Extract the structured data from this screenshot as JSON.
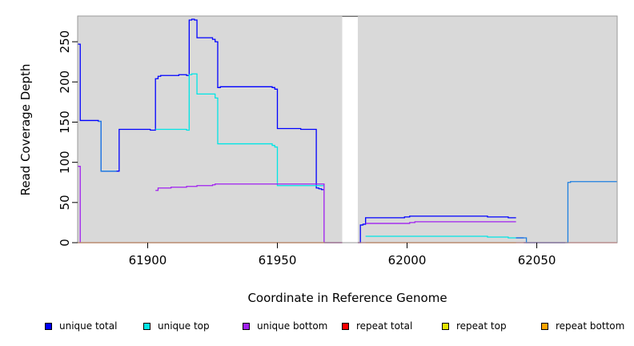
{
  "chart_data": {
    "type": "line",
    "xlabel": "Coordinate in Reference Genome",
    "ylabel": "Read Coverage Depth",
    "xlim": [
      61873,
      62081
    ],
    "ylim": [
      0,
      282
    ],
    "x_ticks": [
      61900,
      61950,
      62000,
      62050
    ],
    "y_ticks": [
      0,
      50,
      100,
      150,
      200,
      250
    ],
    "x_tick_labels": [
      "61900",
      "61950",
      "62000",
      "62050"
    ],
    "y_tick_labels": [
      "0",
      "50",
      "100",
      "150",
      "200",
      "250"
    ],
    "background_regions": [
      [
        61873,
        61975
      ],
      [
        61981,
        62081
      ]
    ],
    "gap_region": [
      61975,
      61981
    ],
    "legend_position": "bottom",
    "series": [
      {
        "name": "unique total",
        "color": "#0000ff",
        "style": "step",
        "segments": [
          [
            [
              61873,
              247
            ],
            [
              61874,
              152
            ],
            [
              61881,
              151
            ],
            [
              61882,
              89
            ],
            [
              61888,
              89
            ],
            [
              61889,
              141
            ],
            [
              61900,
              141
            ],
            [
              61901,
              140
            ],
            [
              61902,
              140
            ],
            [
              61903,
              204
            ],
            [
              61904,
              207
            ],
            [
              61905,
              208
            ],
            [
              61912,
              209
            ],
            [
              61915,
              208
            ],
            [
              61916,
              277
            ],
            [
              61917,
              278
            ],
            [
              61918,
              277
            ],
            [
              61919,
              255
            ],
            [
              61924,
              255
            ],
            [
              61925,
              253
            ],
            [
              61926,
              250
            ],
            [
              61927,
              193
            ],
            [
              61928,
              194
            ],
            [
              61947,
              194
            ],
            [
              61948,
              193
            ],
            [
              61949,
              191
            ],
            [
              61950,
              142
            ],
            [
              61958,
              142
            ],
            [
              61959,
              141
            ],
            [
              61964,
              141
            ],
            [
              61965,
              68
            ],
            [
              61966,
              67
            ],
            [
              61967,
              66
            ],
            [
              61968,
              66
            ]
          ],
          [
            [
              61968,
              0
            ],
            [
              61975,
              0
            ]
          ],
          [
            [
              61981,
              0
            ],
            [
              61982,
              22
            ],
            [
              61983,
              23
            ],
            [
              61984,
              31
            ],
            [
              61998,
              31
            ],
            [
              61999,
              32
            ],
            [
              62001,
              33
            ],
            [
              62030,
              33
            ],
            [
              62031,
              32
            ],
            [
              62038,
              32
            ],
            [
              62039,
              31
            ],
            [
              62042,
              31
            ]
          ],
          [
            [
              62042,
              6
            ],
            [
              62045,
              6
            ]
          ],
          [
            [
              62045,
              0
            ],
            [
              62061,
              0
            ]
          ]
        ]
      },
      {
        "name": "unique top",
        "color": "#00e5e5",
        "style": "step",
        "segments": [
          [
            [
              61903,
              141
            ],
            [
              61915,
              140
            ],
            [
              61916,
              209
            ],
            [
              61917,
              210
            ],
            [
              61919,
              185
            ],
            [
              61925,
              185
            ],
            [
              61926,
              180
            ],
            [
              61927,
              123
            ],
            [
              61946,
              123
            ],
            [
              61948,
              121
            ],
            [
              61949,
              119
            ],
            [
              61950,
              71
            ],
            [
              61968,
              70
            ]
          ],
          [
            [
              61984,
              8
            ],
            [
              62030,
              8
            ],
            [
              62031,
              7
            ],
            [
              62038,
              7
            ],
            [
              62039,
              6
            ],
            [
              62042,
              6
            ]
          ]
        ]
      },
      {
        "name": "unique bottom",
        "color": "#a020f0",
        "style": "step",
        "segments": [
          [
            [
              61873,
              95
            ],
            [
              61874,
              0
            ]
          ],
          [
            [
              61903,
              65
            ],
            [
              61904,
              68
            ],
            [
              61905,
              68
            ],
            [
              61909,
              69
            ],
            [
              61915,
              70
            ],
            [
              61919,
              71
            ],
            [
              61925,
              72
            ],
            [
              61926,
              73
            ],
            [
              61950,
              73
            ],
            [
              61967,
              73
            ],
            [
              61968,
              0
            ]
          ],
          [
            [
              61984,
              24
            ],
            [
              62001,
              25
            ],
            [
              62003,
              26
            ],
            [
              62042,
              26
            ]
          ]
        ]
      },
      {
        "name": "repeat total",
        "color": "#ff0000",
        "style": "step",
        "segments": [
          [
            [
              61873,
              0
            ],
            [
              61975,
              0
            ]
          ],
          [
            [
              61981,
              0
            ],
            [
              62081,
              0
            ]
          ]
        ]
      },
      {
        "name": "repeat top",
        "color": "#e5e500",
        "style": "step",
        "segments": []
      },
      {
        "name": "repeat bottom",
        "color": "#ffa500",
        "style": "step",
        "segments": [
          [
            [
              61873,
              0
            ],
            [
              61968,
              0
            ]
          ],
          [
            [
              61984,
              0
            ],
            [
              62042,
              0
            ]
          ]
        ]
      },
      {
        "name": "",
        "color": "#1e7fe0",
        "style": "step",
        "segments": [
          [
            [
              61881,
              151
            ],
            [
              61882,
              89
            ],
            [
              61888,
              89
            ]
          ],
          [
            [
              62042,
              6
            ],
            [
              62045,
              6
            ],
            [
              62046,
              0
            ],
            [
              62061,
              0
            ],
            [
              62062,
              75
            ],
            [
              62063,
              76
            ],
            [
              62081,
              76
            ]
          ]
        ]
      }
    ]
  }
}
